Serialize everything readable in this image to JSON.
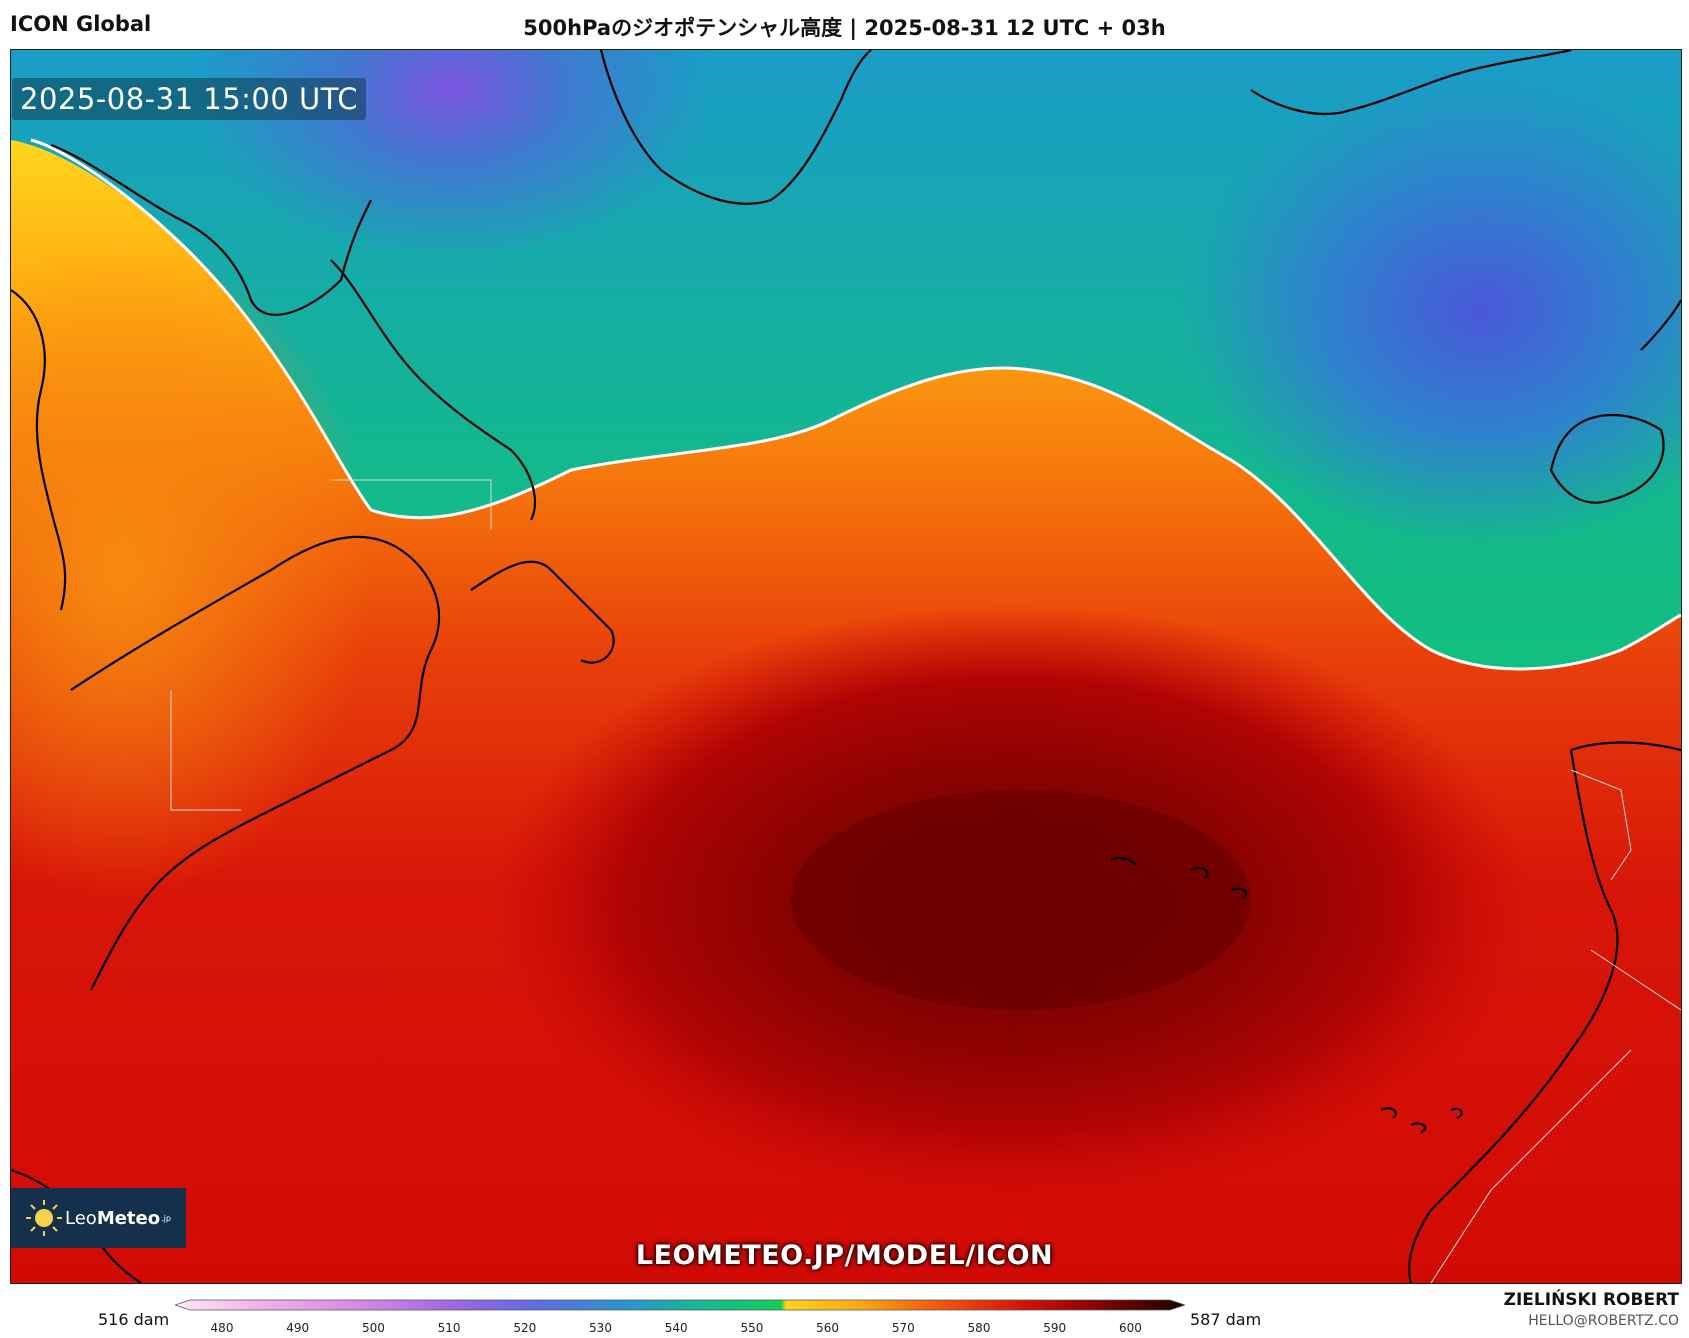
{
  "header": {
    "model": "ICON Global",
    "title": "500hPaのジオポテンシャル高度 | 2025-08-31 12 UTC + 03h"
  },
  "map": {
    "valid_time": "2025-08-31 15:00 UTC",
    "site_url": "LEOMETEO.JP/MODEL/ICON",
    "logo": {
      "part1": "Leo",
      "part2": "Meteo",
      "part3": ".jp"
    },
    "colors": {
      "trough_low": "#4b5ad6",
      "trough_mid": "#1ba4a0",
      "ridge_edge": "#ffd21c",
      "ridge_core": "#6a0000"
    }
  },
  "colorbar": {
    "min_label": "516 dam",
    "max_label": "587 dam",
    "ticks": [
      "480",
      "490",
      "500",
      "510",
      "520",
      "530",
      "540",
      "550",
      "560",
      "570",
      "580",
      "590",
      "600"
    ]
  },
  "credits": {
    "author": "ZIELIŃSKI ROBERT",
    "email": "HELLO@ROBERTZ.CO"
  }
}
